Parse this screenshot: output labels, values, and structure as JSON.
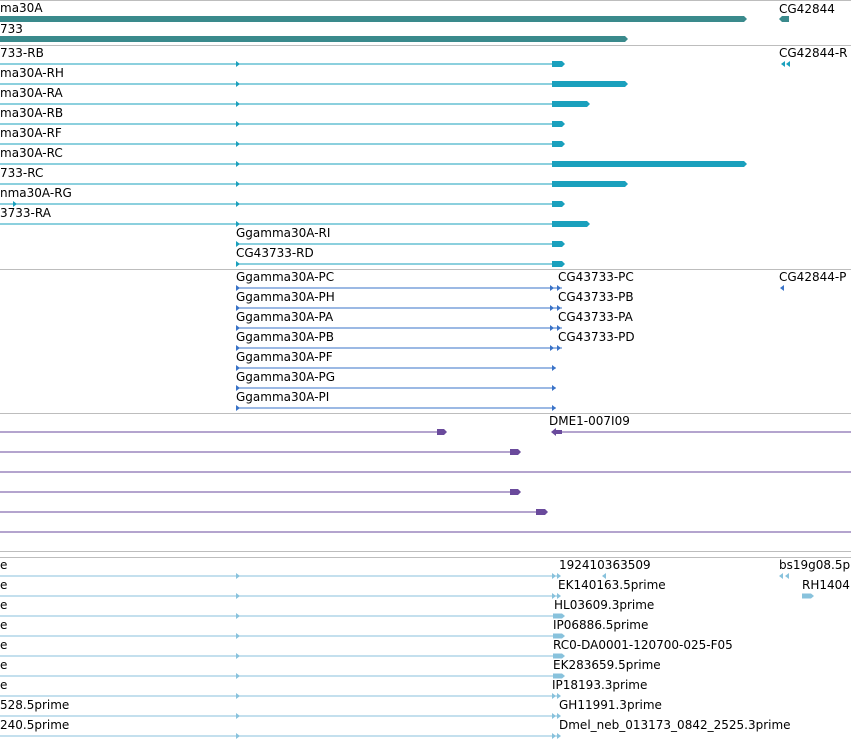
{
  "tracks": {
    "gene_span": {
      "labels": [
        "ma30A",
        "733",
        "CG42844"
      ]
    },
    "transcripts": {
      "labels": [
        "733-RB",
        "CG42844-R",
        "ma30A-RH",
        "ma30A-RA",
        "ma30A-RB",
        "ma30A-RF",
        "ma30A-RC",
        "733-RC",
        "nma30A-RG",
        "3733-RA",
        "Ggamma30A-RI",
        "CG43733-RD"
      ]
    },
    "proteins": {
      "labels": [
        "Ggamma30A-PC",
        "CG43733-PC",
        "CG42844-P",
        "Ggamma30A-PH",
        "CG43733-PB",
        "Ggamma30A-PA",
        "CG43733-PA",
        "Ggamma30A-PB",
        "CG43733-PD",
        "Ggamma30A-PF",
        "Ggamma30A-PG",
        "Ggamma30A-PI"
      ]
    },
    "clones": {
      "labels": [
        "DME1-007I09"
      ]
    },
    "ests": {
      "labels": [
        "e",
        "192410363509",
        "bs19g08.5p",
        "e",
        "EK140163.5prime",
        "RH1404",
        "e",
        "HL03609.3prime",
        "e",
        "IP06886.5prime",
        "e",
        "RC0-DA0001-120700-025-F05",
        "e",
        "EK283659.5prime",
        "e",
        "IP18193.3prime",
        "528.5prime",
        "GH11991.3prime",
        "240.5prime",
        "Dmel_neb_013173_0842_2525.3prime"
      ]
    }
  },
  "colors": {
    "gene_span": "#3a8a8c",
    "transcript": "#1aa0bd",
    "protein": "#3a73c8",
    "clone": "#6a4a9c",
    "est": "#88c2dc",
    "separator": "#bdbdbd"
  }
}
